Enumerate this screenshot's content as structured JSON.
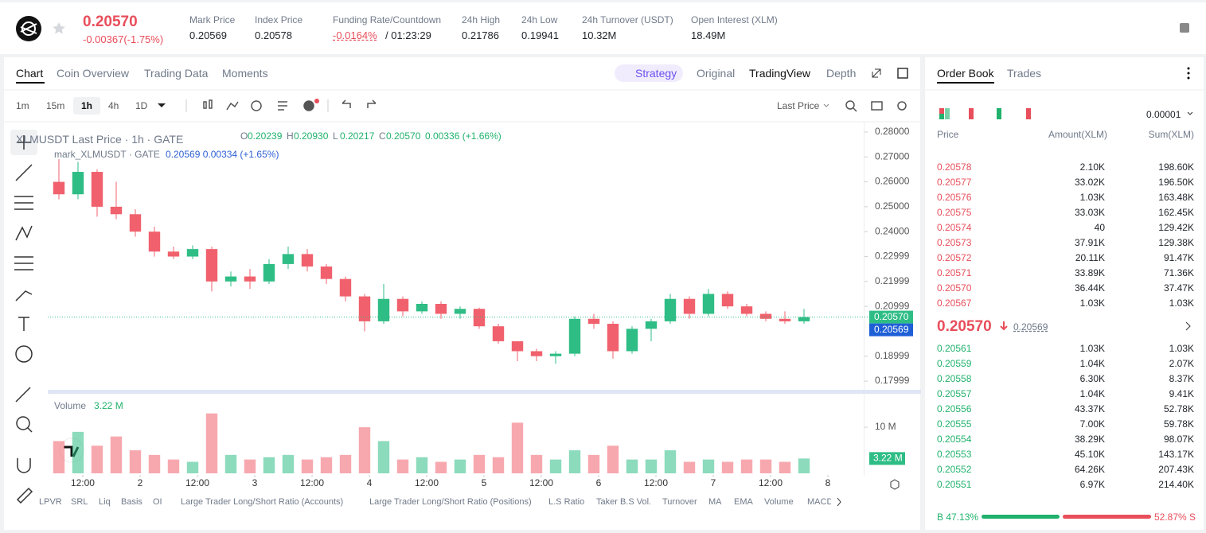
{
  "header": {
    "price": "0.20570",
    "change": "-0.00367(-1.75%)",
    "stats": [
      {
        "label": "Mark Price",
        "value": "0.20569"
      },
      {
        "label": "Index Price",
        "value": "0.20578"
      },
      {
        "label": "Funding Rate/Countdown",
        "value": "-0.0164%",
        "extra": "/ 01:23:29"
      },
      {
        "label": "24h High",
        "value": "0.21786"
      },
      {
        "label": "24h Low",
        "value": "0.19941"
      },
      {
        "label": "24h Turnover (USDT)",
        "value": "10.32M"
      },
      {
        "label": "Open Interest (XLM)",
        "value": "18.49M"
      }
    ]
  },
  "tabs": [
    "Chart",
    "Coin Overview",
    "Trading Data",
    "Moments"
  ],
  "view_tabs": [
    "Strategy",
    "Original",
    "TradingView",
    "Depth"
  ],
  "intervals": [
    "1m",
    "15m",
    "1h",
    "4h",
    "1D"
  ],
  "price_type": "Last Price",
  "legend": {
    "symbol": "XLMUSDT Last Price · 1h · GATE",
    "ohlc": [
      {
        "k": "O",
        "v": "0.20239"
      },
      {
        "k": "H",
        "v": "0.20930"
      },
      {
        "k": "L",
        "v": "0.20217"
      },
      {
        "k": "C",
        "v": "0.20570"
      }
    ],
    "change": "0.00336 (+1.66%)",
    "mark_symbol": "mark_XLMUSDT · GATE",
    "mark_values": "0.20569 0.00334 (+1.65%)",
    "volume": "Volume"
  },
  "chart_data": {
    "type": "candlestick",
    "x": [
      7,
      11,
      15,
      19,
      23,
      27,
      31,
      35,
      39,
      43,
      47,
      51,
      55,
      59,
      63,
      67,
      71,
      75,
      79,
      83,
      87,
      91,
      95,
      99,
      103,
      107,
      111,
      115,
      119,
      123,
      127,
      131,
      135,
      139,
      143,
      147,
      151,
      155,
      159,
      163
    ],
    "open": [
      0.26,
      0.255,
      0.264,
      0.25,
      0.247,
      0.24,
      0.232,
      0.23,
      0.233,
      0.22,
      0.222,
      0.22,
      0.227,
      0.231,
      0.226,
      0.221,
      0.214,
      0.204,
      0.213,
      0.208,
      0.211,
      0.207,
      0.209,
      0.202,
      0.196,
      0.192,
      0.19,
      0.191,
      0.205,
      0.203,
      0.192,
      0.201,
      0.204,
      0.213,
      0.207,
      0.215,
      0.21,
      0.207,
      0.205,
      0.204
    ],
    "high": [
      0.2691,
      0.268,
      0.265,
      0.26,
      0.249,
      0.242,
      0.234,
      0.2345,
      0.234,
      0.224,
      0.225,
      0.229,
      0.234,
      0.233,
      0.227,
      0.222,
      0.215,
      0.219,
      0.214,
      0.212,
      0.212,
      0.21,
      0.2095,
      0.203,
      0.196,
      0.193,
      0.192,
      0.206,
      0.207,
      0.204,
      0.202,
      0.205,
      0.215,
      0.214,
      0.217,
      0.216,
      0.211,
      0.208,
      0.208,
      0.209
    ],
    "low": [
      0.253,
      0.253,
      0.246,
      0.245,
      0.238,
      0.23,
      0.229,
      0.229,
      0.216,
      0.218,
      0.217,
      0.219,
      0.225,
      0.224,
      0.219,
      0.212,
      0.2,
      0.203,
      0.206,
      0.207,
      0.205,
      0.205,
      0.201,
      0.195,
      0.188,
      0.188,
      0.187,
      0.19,
      0.201,
      0.189,
      0.191,
      0.196,
      0.203,
      0.205,
      0.206,
      0.209,
      0.206,
      0.204,
      0.203,
      0.203
    ],
    "close": [
      0.255,
      0.264,
      0.25,
      0.247,
      0.24,
      0.232,
      0.23,
      0.233,
      0.22,
      0.222,
      0.22,
      0.227,
      0.231,
      0.226,
      0.221,
      0.214,
      0.204,
      0.213,
      0.208,
      0.211,
      0.207,
      0.209,
      0.202,
      0.196,
      0.192,
      0.19,
      0.191,
      0.205,
      0.203,
      0.192,
      0.201,
      0.204,
      0.213,
      0.207,
      0.215,
      0.21,
      0.207,
      0.205,
      0.204,
      0.2057
    ],
    "volume": [
      7,
      9,
      6,
      8,
      5,
      4,
      3,
      2.5,
      13,
      4,
      3,
      3.5,
      4,
      3,
      3.5,
      4,
      10,
      7,
      3,
      3.5,
      2.5,
      3,
      4,
      3.5,
      11,
      4,
      3,
      5,
      4,
      6,
      3,
      3,
      5,
      2.5,
      3,
      2.5,
      3,
      3,
      2.5,
      3.22
    ],
    "up_color": "#2ebd85",
    "down_color": "#f0616d",
    "xlim": [
      4.67,
      176.33
    ],
    "xticks": [
      {
        "value": 12,
        "label": "12:00"
      },
      {
        "value": 24,
        "label": "2"
      },
      {
        "value": 36,
        "label": "12:00"
      },
      {
        "value": 48,
        "label": "3"
      },
      {
        "value": 60,
        "label": "12:00"
      },
      {
        "value": 72,
        "label": "4"
      },
      {
        "value": 84,
        "label": "12:00"
      },
      {
        "value": 96,
        "label": "5"
      },
      {
        "value": 108,
        "label": "12:00"
      },
      {
        "value": 120,
        "label": "6"
      },
      {
        "value": 132,
        "label": "12:00"
      },
      {
        "value": 144,
        "label": "7"
      },
      {
        "value": 156,
        "label": "12:00"
      },
      {
        "value": 168,
        "label": "8"
      }
    ],
    "ylim": [
      0.1765,
      0.2835
    ],
    "yticks": [
      {
        "value": 0.28,
        "label": "0.28000"
      },
      {
        "value": 0.27,
        "label": "0.27000"
      },
      {
        "value": 0.26,
        "label": "0.26000"
      },
      {
        "value": 0.25,
        "label": "0.25000"
      },
      {
        "value": 0.24,
        "label": "0.24000"
      },
      0.22999,
      0.21999,
      0.20999,
      0.18999,
      0.17999
    ],
    "last_price": {
      "value": 0.2057,
      "label": "0.20570"
    },
    "mark_price": {
      "value": 0.20569,
      "label": "0.20569"
    },
    "volume_ylim": [
      0,
      16.4
    ],
    "volume_yticks": [
      {
        "value": 10,
        "label": "10 M"
      }
    ],
    "last_volume": {
      "value": 3.22,
      "label": "3.22 M"
    }
  },
  "indicators": [
    "LPVR",
    "SRL",
    "Liq",
    "Basis",
    "OI",
    "Large Trader Long/Short Ratio (Accounts)",
    "Large Trader Long/Short Ratio (Positions)",
    "L.S Ratio",
    "Taker B.S Vol.",
    "Turnover",
    "MA",
    "EMA",
    "Volume",
    "MACD"
  ],
  "order_book": {
    "tabs": [
      "Order Book",
      "Trades"
    ],
    "precision": "0.00001",
    "columns": [
      "Price",
      "Amount(XLM)",
      "Sum(XLM)"
    ],
    "asks": [
      [
        "0.20578",
        "2.10K",
        "198.60K"
      ],
      [
        "0.20577",
        "33.02K",
        "196.50K"
      ],
      [
        "0.20576",
        "1.03K",
        "163.48K"
      ],
      [
        "0.20575",
        "33.03K",
        "162.45K"
      ],
      [
        "0.20574",
        "40",
        "129.42K"
      ],
      [
        "0.20573",
        "37.91K",
        "129.38K"
      ],
      [
        "0.20572",
        "20.11K",
        "91.47K"
      ],
      [
        "0.20571",
        "33.89K",
        "71.36K"
      ],
      [
        "0.20570",
        "36.44K",
        "37.47K"
      ],
      [
        "0.20567",
        "1.03K",
        "1.03K"
      ]
    ],
    "last": "0.20570",
    "mark": "0.20569",
    "bids": [
      [
        "0.20561",
        "1.03K",
        "1.03K"
      ],
      [
        "0.20559",
        "1.04K",
        "2.07K"
      ],
      [
        "0.20558",
        "6.30K",
        "8.37K"
      ],
      [
        "0.20557",
        "1.04K",
        "9.41K"
      ],
      [
        "0.20556",
        "43.37K",
        "52.78K"
      ],
      [
        "0.20555",
        "7.00K",
        "59.78K"
      ],
      [
        "0.20554",
        "38.29K",
        "98.07K"
      ],
      [
        "0.20553",
        "45.10K",
        "143.17K"
      ],
      [
        "0.20552",
        "64.26K",
        "207.43K"
      ],
      [
        "0.20551",
        "6.97K",
        "214.40K"
      ]
    ],
    "buy": 47.13,
    "buy_label": "B 47.13%",
    "sell": 52.87,
    "sell_label": "52.87% S"
  }
}
